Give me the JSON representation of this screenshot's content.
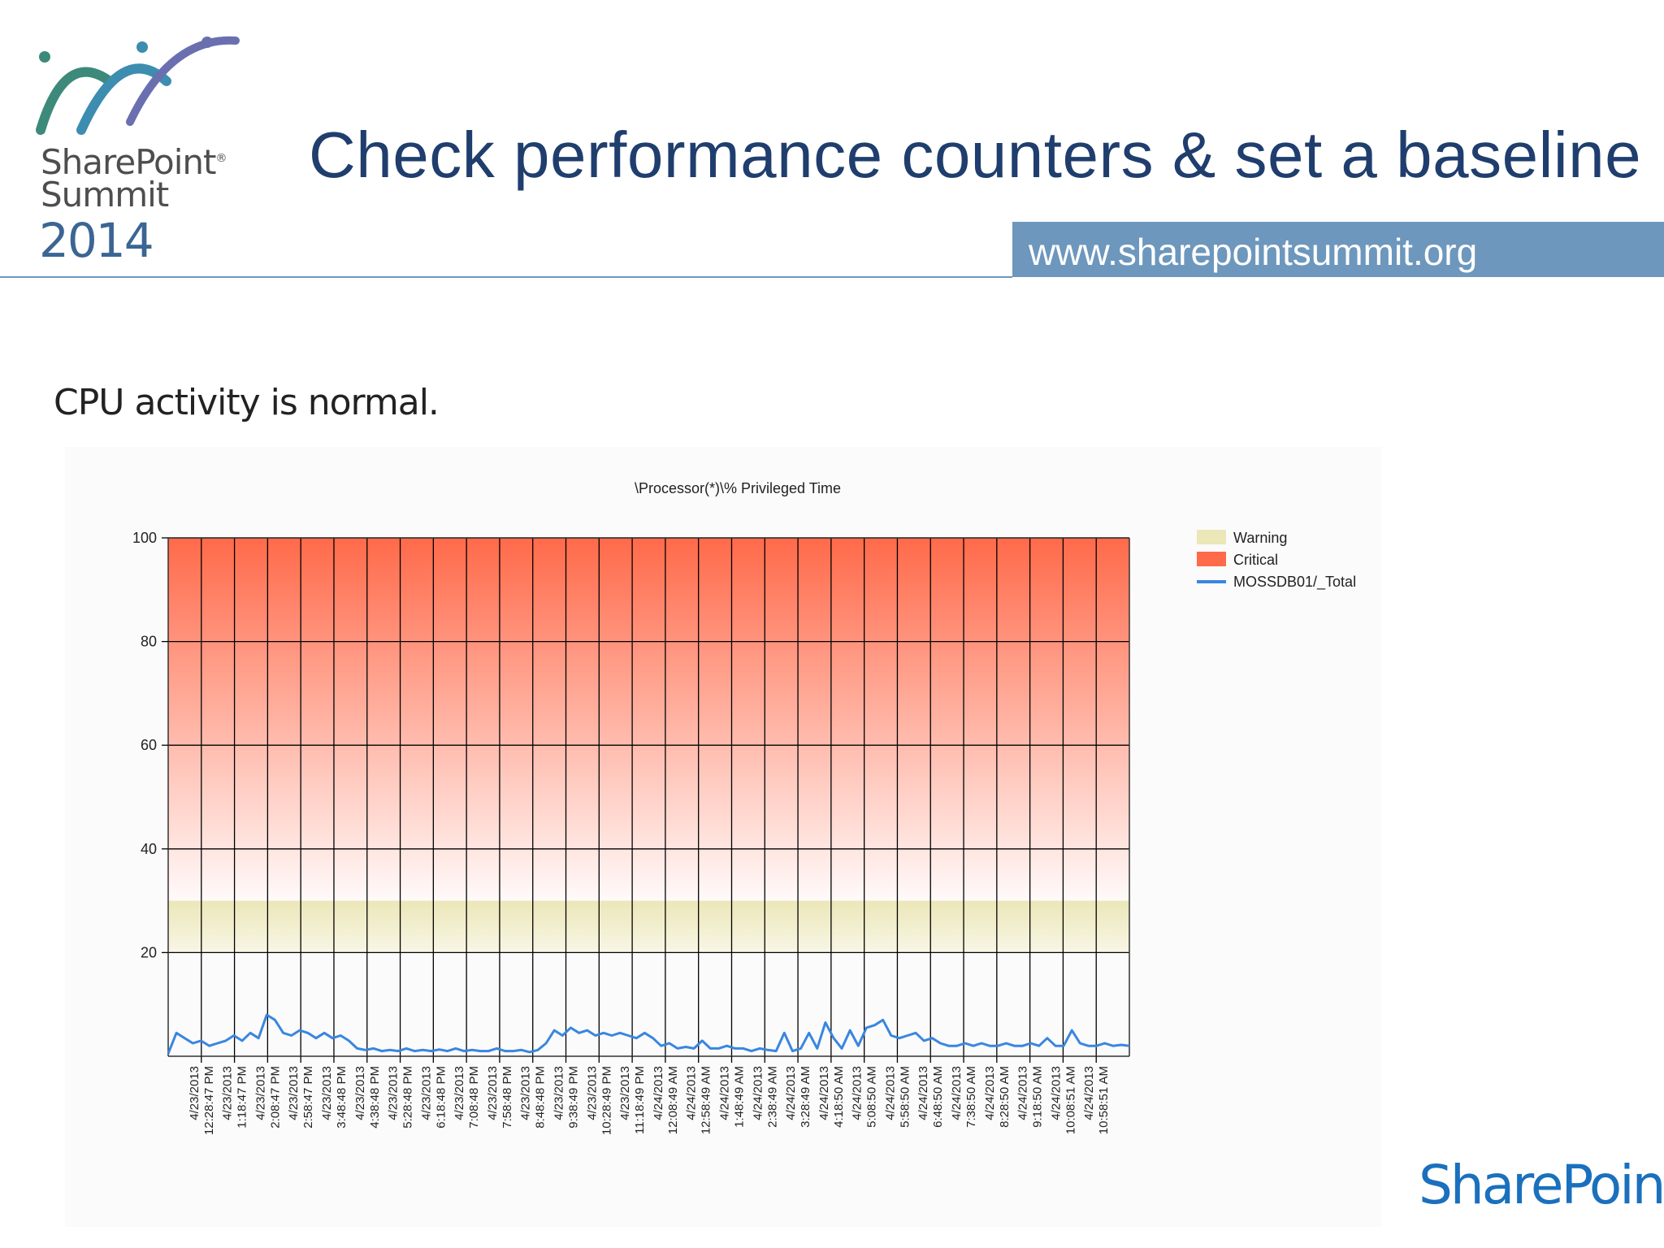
{
  "header": {
    "logo_line1": "SharePoint",
    "logo_reg": "®",
    "logo_line2": "Summit",
    "logo_year": "2014",
    "title": "Check performance counters & set a baseline",
    "url": "www.sharepointsummit.org"
  },
  "subtitle": "CPU activity is normal.",
  "footer": {
    "brand": "SharePoint"
  },
  "colors": {
    "title": "#1f3e6e",
    "url_bar": "#6d97bd",
    "critical_top": "#ff6a4a",
    "warning": "#ebe7b8",
    "series": "#3a86e0"
  },
  "chart_data": {
    "type": "line",
    "title": "\\Processor(*)\\% Privileged Time",
    "ylim": [
      0,
      100
    ],
    "y_ticks": [
      "20",
      "40",
      "60",
      "80",
      "100"
    ],
    "grid": true,
    "legend_position": "top-right",
    "bands": [
      {
        "name": "Warning",
        "from": 20,
        "to": 30,
        "color": "#ebe7b8"
      },
      {
        "name": "Critical",
        "from": 30,
        "to": 100,
        "color": "#ff6a4a"
      }
    ],
    "x_tick_labels": [
      [
        "4/23/2013",
        "12:28:47 PM"
      ],
      [
        "4/23/2013",
        "1:18:47 PM"
      ],
      [
        "4/23/2013",
        "2:08:47 PM"
      ],
      [
        "4/23/2013",
        "2:58:47 PM"
      ],
      [
        "4/23/2013",
        "3:48:48 PM"
      ],
      [
        "4/23/2013",
        "4:38:48 PM"
      ],
      [
        "4/23/2013",
        "5:28:48 PM"
      ],
      [
        "4/23/2013",
        "6:18:48 PM"
      ],
      [
        "4/23/2013",
        "7:08:48 PM"
      ],
      [
        "4/23/2013",
        "7:58:48 PM"
      ],
      [
        "4/23/2013",
        "8:48:48 PM"
      ],
      [
        "4/23/2013",
        "9:38:49 PM"
      ],
      [
        "4/23/2013",
        "10:28:49 PM"
      ],
      [
        "4/23/2013",
        "11:18:49 PM"
      ],
      [
        "4/24/2013",
        "12:08:49 AM"
      ],
      [
        "4/24/2013",
        "12:58:49 AM"
      ],
      [
        "4/24/2013",
        "1:48:49 AM"
      ],
      [
        "4/24/2013",
        "2:38:49 AM"
      ],
      [
        "4/24/2013",
        "3:28:49 AM"
      ],
      [
        "4/24/2013",
        "4:18:50 AM"
      ],
      [
        "4/24/2013",
        "5:08:50 AM"
      ],
      [
        "4/24/2013",
        "5:58:50 AM"
      ],
      [
        "4/24/2013",
        "6:48:50 AM"
      ],
      [
        "4/24/2013",
        "7:38:50 AM"
      ],
      [
        "4/24/2013",
        "8:28:50 AM"
      ],
      [
        "4/24/2013",
        "9:18:50 AM"
      ],
      [
        "4/24/2013",
        "10:08:51 AM"
      ],
      [
        "4/24/2013",
        "10:58:51 AM"
      ]
    ],
    "series": [
      {
        "name": "MOSSDB01/_Total",
        "color": "#3a86e0",
        "values": [
          0.5,
          4.5,
          3.5,
          2.5,
          3.0,
          2.0,
          2.5,
          3.0,
          4.0,
          3.0,
          4.5,
          3.5,
          8.0,
          7.0,
          4.5,
          4.0,
          5.0,
          4.5,
          3.5,
          4.5,
          3.5,
          4.0,
          3.0,
          1.5,
          1.2,
          1.5,
          1.0,
          1.2,
          1.0,
          1.5,
          1.0,
          1.2,
          1.0,
          1.3,
          1.0,
          1.5,
          1.0,
          1.2,
          1.0,
          1.0,
          1.5,
          1.0,
          1.0,
          1.2,
          0.8,
          1.2,
          2.5,
          5.0,
          4.0,
          5.5,
          4.5,
          5.0,
          4.0,
          4.5,
          4.0,
          4.5,
          4.0,
          3.5,
          4.5,
          3.5,
          2.0,
          2.5,
          1.5,
          1.8,
          1.5,
          3.0,
          1.5,
          1.5,
          2.0,
          1.5,
          1.5,
          1.0,
          1.5,
          1.2,
          1.0,
          4.5,
          1.0,
          1.5,
          4.5,
          1.5,
          6.5,
          3.5,
          1.5,
          5.0,
          2.0,
          5.5,
          6.0,
          7.0,
          4.0,
          3.5,
          4.0,
          4.5,
          3.0,
          3.5,
          2.5,
          2.0,
          2.0,
          2.5,
          2.0,
          2.5,
          2.0,
          2.0,
          2.5,
          2.0,
          2.0,
          2.5,
          2.0,
          3.5,
          2.0,
          2.0,
          5.0,
          2.5,
          2.0,
          2.0,
          2.5,
          2.0,
          2.2,
          2.0
        ]
      }
    ]
  }
}
